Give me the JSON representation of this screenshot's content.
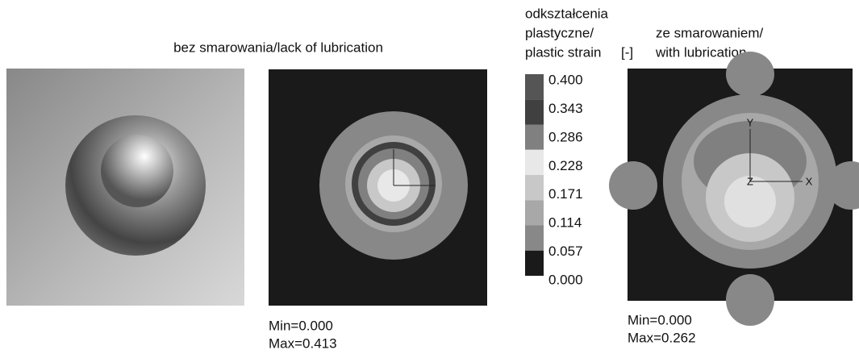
{
  "left_caption": "bez smarowania/lack of lubrication",
  "legend": {
    "title_lines": [
      "odkształcenia",
      "plastyczne/",
      "plastic strain"
    ],
    "unit": "[-]",
    "labels": [
      "0.400",
      "0.343",
      "0.286",
      "0.228",
      "0.171",
      "0.114",
      "0.057",
      "0.000"
    ]
  },
  "right_caption": [
    "ze smarowaniem/",
    "with lubrication"
  ],
  "middle_stats": [
    "Min=0.000",
    "Max=0.413"
  ],
  "right_stats": [
    "Min=0.000",
    "Max=0.262"
  ],
  "axis_labels": {
    "y": "Y",
    "x": "X",
    "z": "Z"
  }
}
